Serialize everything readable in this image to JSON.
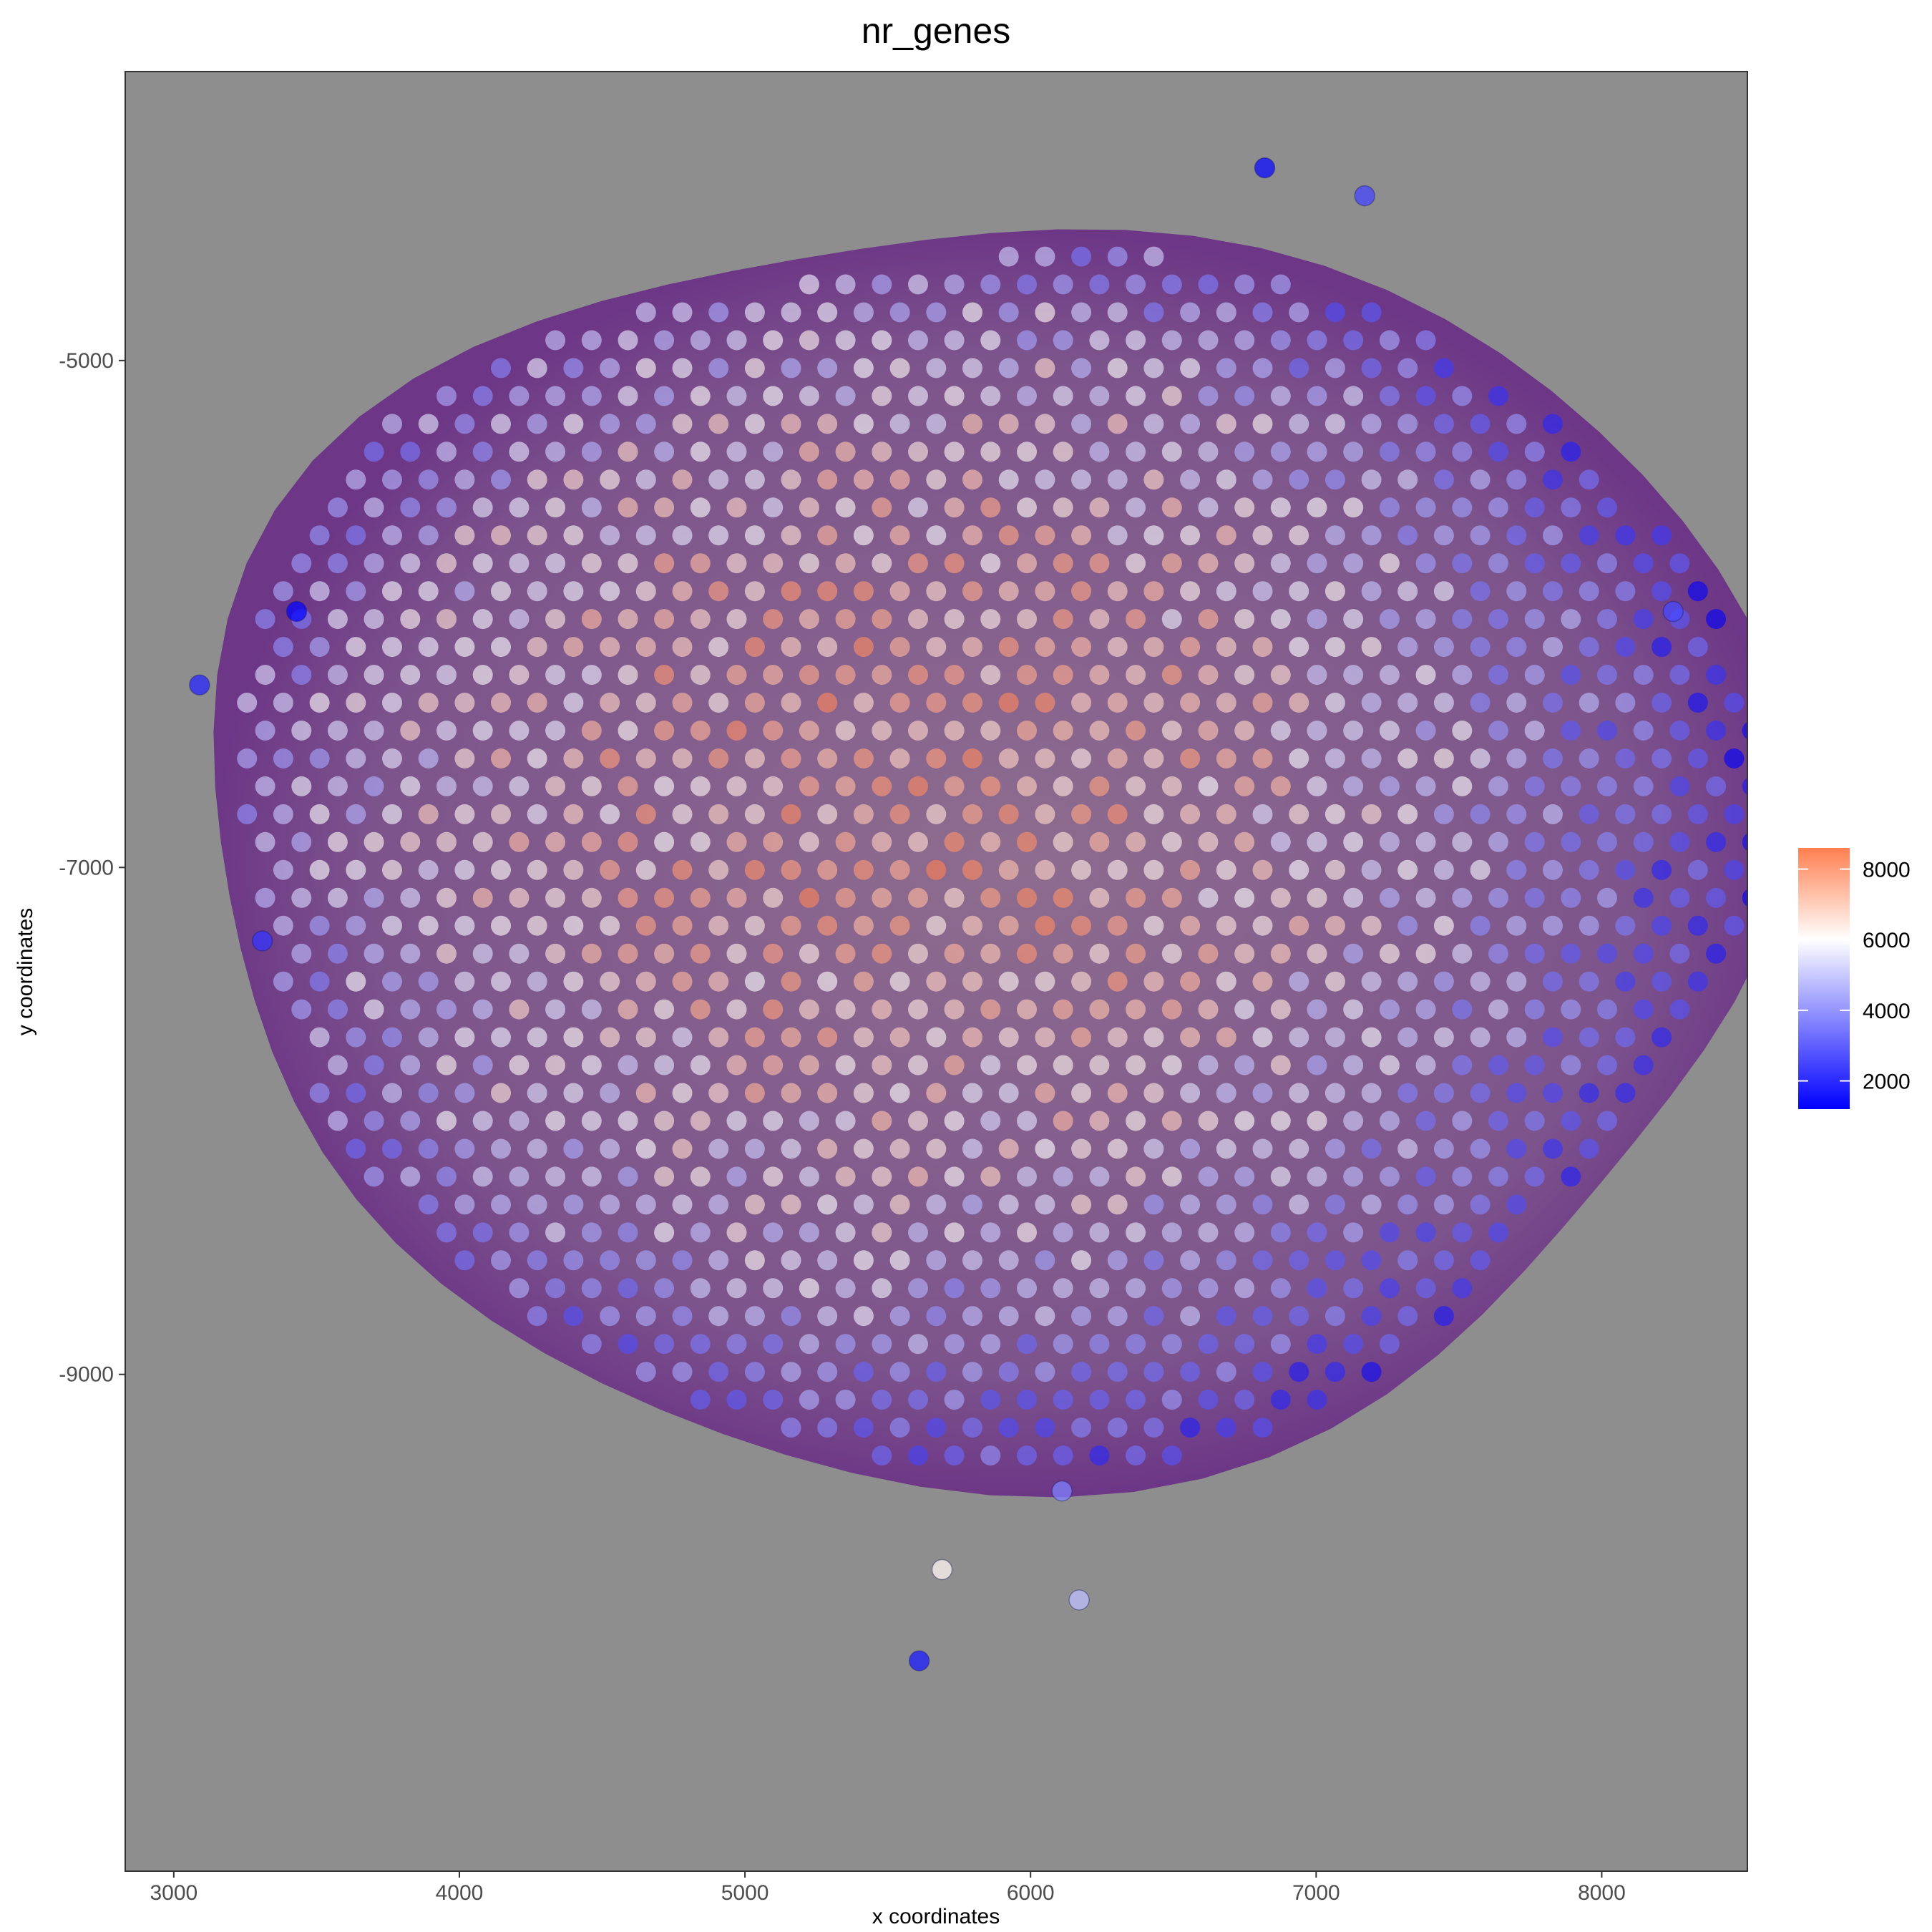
{
  "chart_data": {
    "type": "scatter",
    "title": "nr_genes",
    "xlabel": "x coordinates",
    "ylabel": "y coordinates",
    "xlim": [
      2830,
      8510
    ],
    "ylim": [
      -10960,
      -3860
    ],
    "x_ticks": [
      3000,
      4000,
      5000,
      6000,
      7000,
      8000
    ],
    "x_tick_labels": [
      "3000",
      "4000",
      "5000",
      "6000",
      "7000",
      "8000"
    ],
    "y_ticks": [
      -5000,
      -7000,
      -9000
    ],
    "y_tick_labels": [
      "-5000",
      "-7000",
      "-9000"
    ],
    "grid": false,
    "background": "H&E tissue section image with spatial spots overlaid",
    "spot_grid": {
      "center": [
        5860,
        -6900
      ],
      "x_spacing": 127,
      "y_spacing": 110,
      "tissue_radius_x": 2660,
      "tissue_radius_y": 2400
    },
    "color_scale": {
      "low": "#0000ff",
      "mid": "#ffffff",
      "high": "#ff7f50",
      "min": 1200,
      "midpoint": 6000,
      "max": 8600,
      "legend_placement": "right",
      "legend_ticks": [
        8000,
        6000,
        4000,
        2000
      ],
      "legend_tick_labels": [
        "8000",
        "6000",
        "4000",
        "2000"
      ]
    },
    "outlier_points": [
      {
        "x": 6820,
        "y": -4240,
        "value": 1400
      },
      {
        "x": 7170,
        "y": -4350,
        "value": 2500
      },
      {
        "x": 3090,
        "y": -6280,
        "value": 1900
      },
      {
        "x": 3430,
        "y": -5990,
        "value": 1300
      },
      {
        "x": 3310,
        "y": -7290,
        "value": 2200
      },
      {
        "x": 8250,
        "y": -5990,
        "value": 2600
      },
      {
        "x": 5610,
        "y": -10130,
        "value": 1700
      },
      {
        "x": 5690,
        "y": -9770,
        "value": 6200
      },
      {
        "x": 6170,
        "y": -9890,
        "value": 4800
      },
      {
        "x": 6110,
        "y": -9460,
        "value": 3600
      }
    ]
  }
}
